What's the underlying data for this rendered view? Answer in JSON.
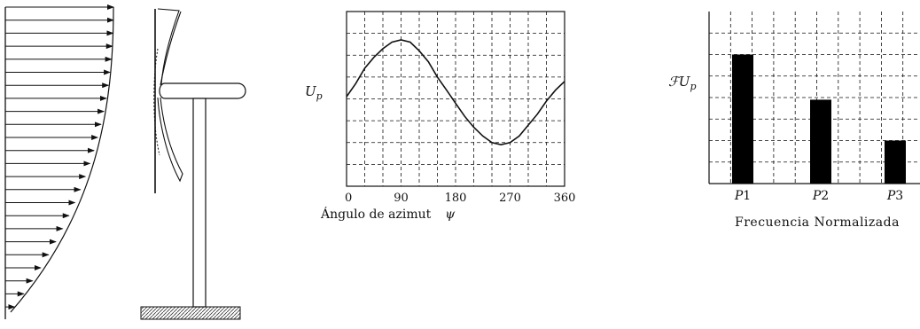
{
  "left_diagram": {
    "type": "wind-turbine-with-wind-shear-profile"
  },
  "charts": {
    "left_label": "U",
    "left_label_sub": "p",
    "left_xlabel": "Ángulo de azimut",
    "left_xsymbol": "ψ",
    "right_label": "ℱU",
    "right_label_sub": "p",
    "right_xlabel": "Frecuencia Normalizada"
  },
  "chart_data": [
    {
      "type": "line",
      "title": "",
      "xlabel": "Ángulo de azimut ψ",
      "ylabel": "Up",
      "x_ticks": [
        "0",
        "90",
        "180",
        "270",
        "360"
      ],
      "xlim": [
        0,
        360
      ],
      "ylim": [
        0,
        8
      ],
      "grid": true,
      "series": [
        {
          "x": [
            0,
            15,
            30,
            45,
            60,
            75,
            90,
            105,
            120,
            135,
            150,
            165,
            180,
            195,
            210,
            225,
            240,
            255,
            270,
            285,
            300,
            315,
            330,
            345,
            360
          ],
          "y": [
            4.1,
            4.7,
            5.4,
            5.9,
            6.3,
            6.6,
            6.7,
            6.6,
            6.2,
            5.7,
            5.0,
            4.4,
            3.8,
            3.2,
            2.7,
            2.3,
            2.0,
            1.9,
            2.0,
            2.3,
            2.8,
            3.3,
            3.9,
            4.4,
            4.8
          ]
        }
      ]
    },
    {
      "type": "bar",
      "title": "",
      "xlabel": "Frecuencia Normalizada",
      "ylabel": "ℱUp",
      "categories": [
        "P1",
        "P2",
        "P3"
      ],
      "values": [
        6,
        3.9,
        2
      ],
      "ylim": [
        0,
        8
      ],
      "grid": true
    }
  ]
}
